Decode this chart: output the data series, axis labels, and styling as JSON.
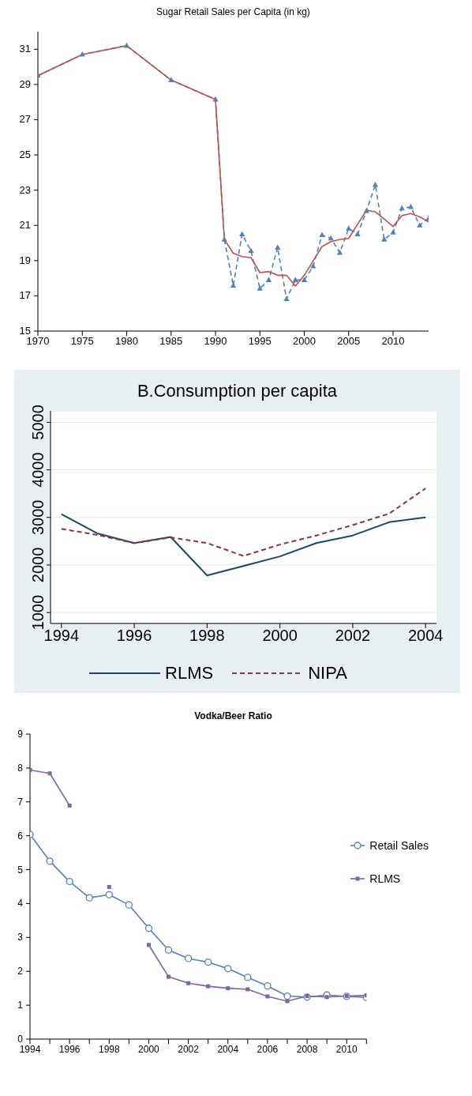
{
  "chart_data": [
    {
      "type": "line",
      "title": "Sugar Retail Sales per Capita  (in kg)",
      "xlim": [
        1970,
        2014
      ],
      "xticks": [
        1970,
        1975,
        1980,
        1985,
        1990,
        1995,
        2000,
        2005,
        2010
      ],
      "ylim": [
        15,
        32
      ],
      "yticks": [
        15,
        17,
        19,
        21,
        23,
        25,
        27,
        29,
        31
      ],
      "grid": false,
      "legend": false,
      "series": [
        {
          "color": "#4f81bd",
          "line_style": "dashed",
          "marker": "triangle",
          "x": [
            1970,
            1975,
            1980,
            1985,
            1990,
            1991,
            1992,
            1993,
            1994,
            1995,
            1996,
            1997,
            1998,
            1999,
            2000,
            2001,
            2002,
            2003,
            2004,
            2005,
            2006,
            2007,
            2008,
            2009,
            2010,
            2011,
            2012,
            2013,
            2014
          ],
          "values": [
            29.5,
            30.7,
            31.2,
            29.25,
            28.15,
            20.2,
            17.58,
            20.5,
            19.56,
            17.42,
            17.9,
            19.74,
            16.82,
            17.9,
            17.9,
            18.68,
            20.45,
            20.26,
            19.45,
            20.82,
            20.5,
            21.82,
            23.3,
            20.2,
            20.6,
            21.97,
            22.05,
            21.0,
            21.4
          ]
        },
        {
          "color": "#c0504d",
          "line_style": "solid",
          "marker": "none",
          "x": [
            1970,
            1975,
            1980,
            1985,
            1990,
            1991,
            1992,
            1993,
            1994,
            1995,
            1996,
            1997,
            1998,
            1999,
            2000,
            2001,
            2002,
            2003,
            2004,
            2005,
            2006,
            2007,
            2008,
            2009,
            2010,
            2011,
            2012,
            2013,
            2014
          ],
          "values": [
            29.5,
            30.7,
            31.2,
            29.25,
            28.15,
            20.2,
            19.42,
            19.23,
            19.17,
            18.32,
            18.38,
            18.17,
            18.17,
            17.56,
            18.17,
            18.99,
            19.8,
            20.08,
            20.2,
            20.26,
            21.06,
            21.86,
            21.77,
            21.36,
            20.94,
            21.56,
            21.67,
            21.48,
            21.2
          ]
        }
      ]
    },
    {
      "type": "line",
      "title": "B.Consumption per capita",
      "xlim": [
        1993.7,
        2004.3
      ],
      "xticks": [
        1994,
        1996,
        1998,
        2000,
        2002,
        2004
      ],
      "ylim": [
        770,
        5240
      ],
      "yticks": [
        1000,
        2000,
        3000,
        4000,
        5000
      ],
      "grid": "y",
      "legend": "bottom",
      "x": [
        1994,
        1995,
        1996,
        1997,
        1998,
        1999,
        2000,
        2001,
        2002,
        2003,
        2004
      ],
      "series": [
        {
          "name": "RLMS",
          "color": "#1a476f",
          "line_style": "solid",
          "values": [
            3070,
            2660,
            2460,
            2590,
            1780,
            1980,
            2180,
            2460,
            2620,
            2900,
            3000
          ]
        },
        {
          "name": "NIPA",
          "color": "#90353b",
          "line_style": "dashed",
          "values": [
            2760,
            2630,
            2460,
            2580,
            2460,
            2190,
            2430,
            2620,
            2840,
            3080,
            3610
          ]
        }
      ]
    },
    {
      "type": "line",
      "title": "Vodka/Beer Ratio",
      "xlim": [
        1994,
        2011
      ],
      "xticks": [
        1994,
        {
          "value": 1995,
          "label": null
        },
        1996,
        {
          "value": 1997,
          "label": null
        },
        1998,
        {
          "value": 1999,
          "label": null
        },
        2000,
        {
          "value": 2001,
          "label": null
        },
        2002,
        {
          "value": 2003,
          "label": null
        },
        2004,
        {
          "value": 2005,
          "label": null
        },
        2006,
        {
          "value": 2007,
          "label": null
        },
        2008,
        {
          "value": 2009,
          "label": null
        },
        2010,
        {
          "value": 2011,
          "label": null
        }
      ],
      "ylim": [
        0,
        9
      ],
      "yticks": [
        0,
        1,
        2,
        3,
        4,
        5,
        6,
        7,
        8,
        9
      ],
      "grid": false,
      "legend": "right",
      "x": [
        1994,
        1995,
        1996,
        1997,
        1998,
        1999,
        2000,
        2001,
        2002,
        2003,
        2004,
        2005,
        2006,
        2007,
        2008,
        2009,
        2010,
        2011
      ],
      "series": [
        {
          "name": "Retail Sales",
          "color": "#4f81bd",
          "marker": "circle",
          "values": [
            6.04,
            5.25,
            4.65,
            4.17,
            4.26,
            3.96,
            3.27,
            2.63,
            2.38,
            2.27,
            2.08,
            1.82,
            1.57,
            1.27,
            1.24,
            1.3,
            1.26,
            1.23
          ]
        },
        {
          "name": "RLMS",
          "color": "#8064a2",
          "marker": "square",
          "values": [
            7.94,
            7.84,
            6.89,
            null,
            4.49,
            null,
            2.78,
            1.84,
            1.65,
            1.56,
            1.5,
            1.47,
            1.26,
            1.12,
            1.27,
            1.24,
            1.27,
            1.29
          ]
        }
      ]
    }
  ]
}
